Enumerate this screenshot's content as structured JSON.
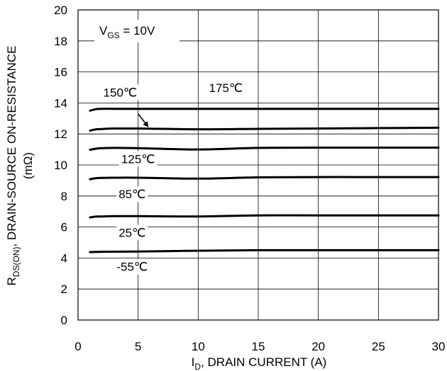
{
  "chart_data": {
    "type": "line",
    "ylabel_main": "R",
    "ylabel_sub": "DS(ON)",
    "ylabel_rest": ",   DRAIN-SOURCE ON-RESISTANCE",
    "ylabel_unit": "(mΩ)",
    "xlabel_main": "I",
    "xlabel_sub": "D",
    "xlabel_rest": ", DRAIN CURRENT (A)",
    "condition_main": "V",
    "condition_sub": "GS",
    "condition_rest": " = 10V",
    "xlim": [
      0,
      30
    ],
    "ylim": [
      0,
      20
    ],
    "xticks": [
      0,
      5,
      10,
      15,
      20,
      25,
      30
    ],
    "yticks": [
      0,
      2,
      4,
      6,
      8,
      10,
      12,
      14,
      16,
      18,
      20
    ],
    "grid": true,
    "series": [
      {
        "name": "175℃",
        "x": [
          1,
          1.5,
          2,
          3,
          5,
          10,
          15,
          20,
          25,
          30
        ],
        "y": [
          13.5,
          13.6,
          13.62,
          13.62,
          13.62,
          13.62,
          13.62,
          13.62,
          13.62,
          13.62
        ]
      },
      {
        "name": "150℃",
        "x": [
          1,
          1.5,
          2,
          3,
          5,
          10,
          15,
          20,
          25,
          30
        ],
        "y": [
          12.22,
          12.3,
          12.32,
          12.35,
          12.35,
          12.3,
          12.33,
          12.35,
          12.38,
          12.4
        ]
      },
      {
        "name": "125℃",
        "x": [
          1,
          1.5,
          2,
          3,
          5,
          10,
          15,
          20,
          25,
          30
        ],
        "y": [
          10.98,
          11.05,
          11.08,
          11.1,
          11.08,
          11.0,
          11.1,
          11.12,
          11.12,
          11.12
        ]
      },
      {
        "name": "85℃",
        "x": [
          1,
          1.5,
          2,
          3,
          5,
          10,
          15,
          20,
          25,
          30
        ],
        "y": [
          9.08,
          9.15,
          9.17,
          9.18,
          9.18,
          9.12,
          9.2,
          9.22,
          9.22,
          9.22
        ]
      },
      {
        "name": "25℃",
        "x": [
          1,
          1.5,
          2,
          3,
          5,
          10,
          15,
          20,
          25,
          30
        ],
        "y": [
          6.62,
          6.67,
          6.68,
          6.7,
          6.7,
          6.68,
          6.75,
          6.75,
          6.75,
          6.75
        ]
      },
      {
        "name": "-55℃",
        "x": [
          1,
          2,
          5,
          10,
          15,
          20,
          25,
          30
        ],
        "y": [
          4.38,
          4.4,
          4.42,
          4.47,
          4.5,
          4.5,
          4.5,
          4.5
        ]
      }
    ],
    "annotations": [
      {
        "text": "150℃",
        "x": 3.5,
        "y": 14.55
      },
      {
        "text": "175℃",
        "x": 12.3,
        "y": 14.85
      },
      {
        "text": "125℃",
        "x": 5.0,
        "y": 10.25
      },
      {
        "text": "85℃",
        "x": 4.5,
        "y": 7.98
      },
      {
        "text": "25℃",
        "x": 4.5,
        "y": 5.5
      },
      {
        "text": "-55℃",
        "x": 4.5,
        "y": 3.3
      }
    ],
    "arrow": {
      "from": [
        5.0,
        13.3
      ],
      "to": [
        5.8,
        12.5
      ]
    }
  }
}
